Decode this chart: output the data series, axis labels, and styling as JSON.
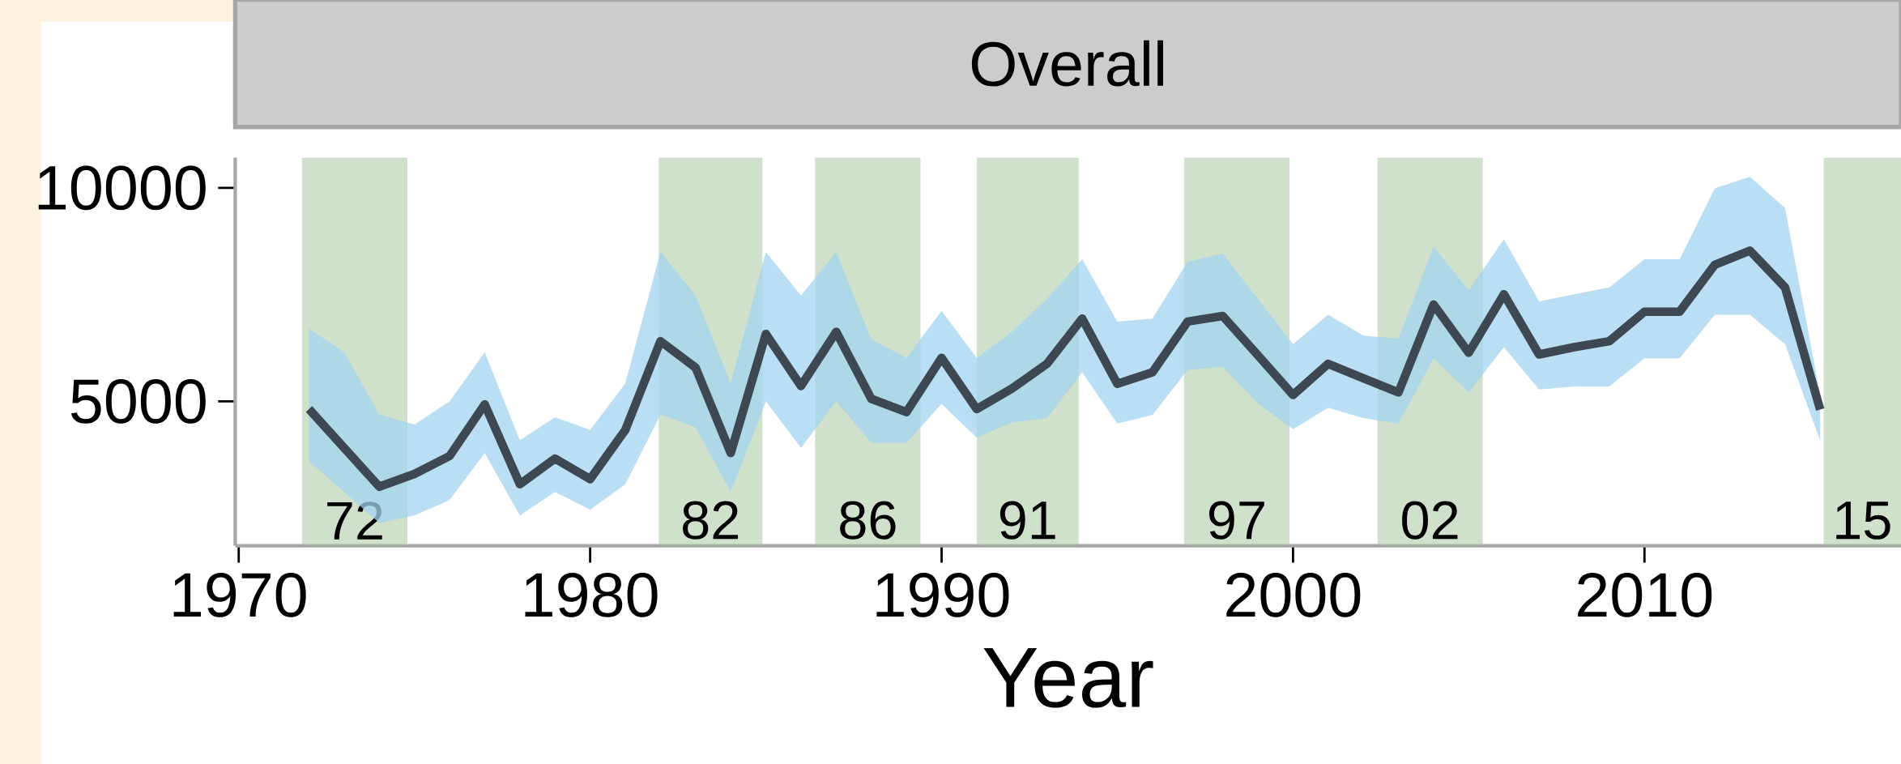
{
  "chart_data": {
    "type": "line",
    "title": "Overall",
    "xlabel": "Year",
    "x": [
      1972,
      1973,
      1974,
      1975,
      1976,
      1977,
      1978,
      1979,
      1980,
      1981,
      1982,
      1983,
      1984,
      1985,
      1986,
      1987,
      1988,
      1989,
      1990,
      1991,
      1992,
      1993,
      1994,
      1995,
      1996,
      1997,
      1998,
      1999,
      2000,
      2001,
      2002,
      2003,
      2004,
      2005,
      2006,
      2007,
      2008,
      2009,
      2010,
      2011,
      2012,
      2013,
      2014,
      2015
    ],
    "series": [
      {
        "color": "#3d4852",
        "values": [
          4820,
          3910,
          3000,
          3300,
          3720,
          4930,
          3060,
          3660,
          3180,
          4330,
          6410,
          5790,
          3790,
          6580,
          5360,
          6630,
          5060,
          4750,
          6020,
          4820,
          5300,
          5880,
          6940,
          5410,
          5680,
          6870,
          7000,
          6080,
          5150,
          5880,
          5540,
          5210,
          7270,
          6140,
          7510,
          6100,
          6270,
          6410,
          7100,
          7100,
          8200,
          8530,
          7670,
          4810
        ],
        "lower": [
          3600,
          2880,
          2150,
          2330,
          2690,
          3790,
          2330,
          2880,
          2460,
          3060,
          4690,
          4390,
          2880,
          5000,
          3910,
          5000,
          4030,
          4030,
          4940,
          4150,
          4510,
          4610,
          5680,
          4480,
          4680,
          5740,
          5810,
          4950,
          4350,
          4850,
          4610,
          4480,
          6010,
          5210,
          6270,
          5280,
          5350,
          5350,
          6010,
          6010,
          7030,
          7030,
          6340,
          4080
        ],
        "upper": [
          6700,
          6150,
          4690,
          4460,
          5000,
          6150,
          4090,
          4630,
          4330,
          5420,
          8500,
          7480,
          5420,
          8500,
          7480,
          8500,
          6450,
          6020,
          7120,
          6020,
          6630,
          7400,
          8330,
          6870,
          6940,
          8270,
          8460,
          7400,
          6340,
          7030,
          6540,
          6470,
          8620,
          7600,
          8800,
          7340,
          7510,
          7670,
          8330,
          8330,
          9990,
          10260,
          9530,
          5150
        ]
      }
    ],
    "xlim": [
      1969.9,
      2017.3
    ],
    "ylim": [
      1620,
      10710
    ],
    "xticks": [
      1970,
      1980,
      1990,
      2000,
      2010
    ],
    "yticks": [
      5000,
      10000
    ],
    "bands": [
      {
        "axis": "x",
        "from": 1971.8,
        "to": 1974.8,
        "label": "72",
        "color": "#a9c9a0"
      },
      {
        "axis": "x",
        "from": 1981.95,
        "to": 1984.9,
        "label": "82",
        "color": "#a9c9a0"
      },
      {
        "axis": "x",
        "from": 1986.4,
        "to": 1989.4,
        "label": "86",
        "color": "#a9c9a0"
      },
      {
        "axis": "x",
        "from": 1991.0,
        "to": 1993.9,
        "label": "91",
        "color": "#a9c9a0"
      },
      {
        "axis": "x",
        "from": 1996.9,
        "to": 1999.9,
        "label": "97",
        "color": "#a9c9a0"
      },
      {
        "axis": "x",
        "from": 2002.4,
        "to": 2005.4,
        "label": "02",
        "color": "#a9c9a0"
      },
      {
        "axis": "x",
        "from": 2015.1,
        "to": 2017.3,
        "label": "15",
        "color": "#a9c9a0"
      }
    ],
    "line_style": "solid",
    "marker": "none"
  }
}
